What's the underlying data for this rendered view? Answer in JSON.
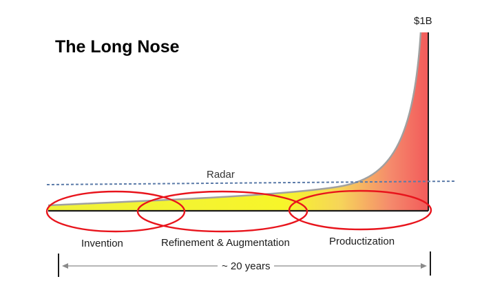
{
  "title": "The Long Nose",
  "peak_label": "$1B",
  "radar_label": "Radar",
  "phases": [
    {
      "label": "Invention"
    },
    {
      "label": "Refinement & Augmentation"
    },
    {
      "label": "Productization"
    }
  ],
  "duration_label": "~ 20 years",
  "colors": {
    "curve_start": "#f2f522",
    "curve_end": "#f25a5a",
    "curve_outline": "#a0a0a0",
    "radar_line": "#5a7aa8",
    "phase_ellipse": "#e8141c",
    "axis": "#1a1a1a"
  }
}
